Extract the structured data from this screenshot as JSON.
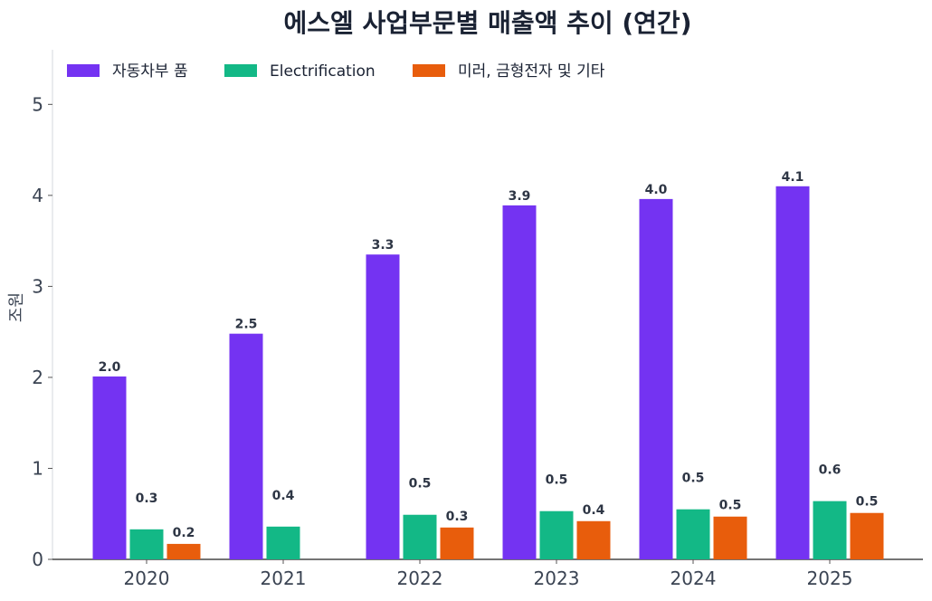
{
  "chart_data": {
    "type": "bar",
    "title": "에스엘 사업부문별 매출액 추이 (연간)",
    "xlabel": "",
    "ylabel": "조원",
    "categories": [
      "2020",
      "2021",
      "2022",
      "2023",
      "2024",
      "2025"
    ],
    "ylim": [
      0,
      5.6
    ],
    "yticks": [
      0,
      1,
      2,
      3,
      4,
      5
    ],
    "grid": false,
    "legend_position": "top-left",
    "series": [
      {
        "name": "자동차부 품",
        "color": "#7433f2",
        "values": [
          2.01,
          2.48,
          3.35,
          3.89,
          3.96,
          4.1
        ],
        "labels": [
          "2.0",
          "2.5",
          "3.3",
          "3.9",
          "4.0",
          "4.1"
        ]
      },
      {
        "name": "Electrification",
        "color": "#13b886",
        "values": [
          0.33,
          0.36,
          0.49,
          0.53,
          0.55,
          0.64
        ],
        "labels": [
          "0.3",
          "0.4",
          "0.5",
          "0.5",
          "0.5",
          "0.6"
        ]
      },
      {
        "name": "미러, 금형전자 및 기타",
        "color": "#e85d0c",
        "values": [
          0.17,
          null,
          0.35,
          0.42,
          0.47,
          0.51
        ],
        "labels": [
          "0.2",
          null,
          "0.3",
          "0.4",
          "0.5",
          "0.5"
        ]
      }
    ]
  }
}
